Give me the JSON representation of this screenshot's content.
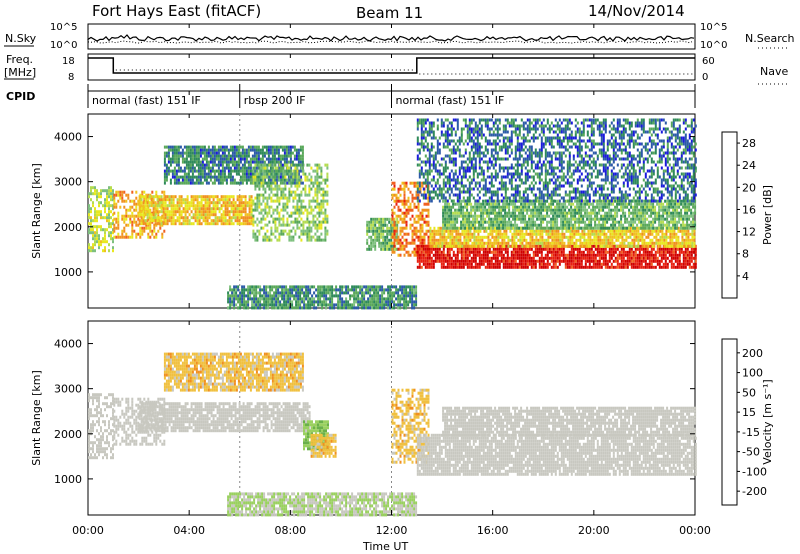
{
  "header": {
    "station": "Fort Hays East (fitACF)",
    "beam": "Beam 11",
    "date": "14/Nov/2014"
  },
  "left_labels": {
    "nsky": "N.Sky",
    "freq_line1": "Freq.",
    "freq_line2": "[MHz]",
    "cpid": "CPID"
  },
  "right_labels": {
    "nsearch": "N.Search",
    "nave": "Nave"
  },
  "noise_axis": {
    "top": "10^5",
    "bottom": "10^0"
  },
  "freq_axis": {
    "top": "18",
    "bottom": "8"
  },
  "nave_axis": {
    "top": "60",
    "bottom": "0"
  },
  "cpid_segments": [
    {
      "start_hour": 0,
      "end_hour": 6.0,
      "label": "normal (fast) 151 IF"
    },
    {
      "start_hour": 6.0,
      "end_hour": 12.0,
      "label": "rbsp 200 IF"
    },
    {
      "start_hour": 12.0,
      "end_hour": 24,
      "label": "normal (fast) 151 IF"
    }
  ],
  "x_axis": {
    "title": "Time UT",
    "ticks": [
      "00:00",
      "04:00",
      "08:00",
      "12:00",
      "16:00",
      "20:00",
      "00:00"
    ],
    "range_hours": [
      0,
      24
    ]
  },
  "chart_data": [
    {
      "type": "heatmap",
      "panel": "power",
      "ylabel": "Slant Range [km]",
      "yticks": [
        "1000",
        "2000",
        "3000",
        "4000"
      ],
      "ylim_km": [
        200,
        4500
      ],
      "colorbar": {
        "label": "Power [dB]",
        "ticks": [
          "4",
          "8",
          "12",
          "16",
          "20",
          "24",
          "28"
        ],
        "range": [
          0,
          30
        ],
        "colors": [
          "#1a1adc",
          "#2c5aa8",
          "#2f8a5a",
          "#5aa85a",
          "#7ec07e",
          "#b4dc50",
          "#e8e820",
          "#f0c020",
          "#f09020",
          "#f06020",
          "#e82010",
          "#d00000"
        ]
      },
      "echo_regions": [
        {
          "t0": 0.0,
          "t1": 1.0,
          "r0": 1500,
          "r1": 2900,
          "power": 14
        },
        {
          "t0": 1.0,
          "t1": 3.0,
          "r0": 1800,
          "r1": 2800,
          "power": 20
        },
        {
          "t0": 2.0,
          "t1": 6.5,
          "r0": 2100,
          "r1": 2700,
          "power": 18
        },
        {
          "t0": 3.0,
          "t1": 8.5,
          "r0": 3000,
          "r1": 3800,
          "power": 6
        },
        {
          "t0": 6.5,
          "t1": 9.5,
          "r0": 1700,
          "r1": 3400,
          "power": 12
        },
        {
          "t0": 11.0,
          "t1": 12.2,
          "r0": 1500,
          "r1": 2200,
          "power": 10
        },
        {
          "t0": 12.0,
          "t1": 13.5,
          "r0": 1400,
          "r1": 3000,
          "power": 22
        },
        {
          "t0": 13.0,
          "t1": 24.0,
          "r0": 1100,
          "r1": 1600,
          "power": 28
        },
        {
          "t0": 13.5,
          "t1": 24.0,
          "r0": 1600,
          "r1": 2000,
          "power": 18
        },
        {
          "t0": 14.0,
          "t1": 24.0,
          "r0": 2000,
          "r1": 2600,
          "power": 10
        },
        {
          "t0": 13.0,
          "t1": 24.0,
          "r0": 2600,
          "r1": 4400,
          "power": 5
        },
        {
          "t0": 5.5,
          "t1": 13.0,
          "r0": 200,
          "r1": 700,
          "power": 7
        }
      ]
    },
    {
      "type": "heatmap",
      "panel": "velocity",
      "ylabel": "Slant Range [km]",
      "yticks": [
        "1000",
        "2000",
        "3000",
        "4000"
      ],
      "ylim_km": [
        200,
        4500
      ],
      "colorbar": {
        "label": "Velocity [m s⁻¹]",
        "ticks": [
          "200",
          "100",
          "50",
          "15",
          "-15",
          "-50",
          "-100",
          "-200"
        ],
        "range": [
          -250,
          250
        ],
        "colors": [
          "#1a2ad0",
          "#2c5aa8",
          "#2f8a5a",
          "#6ab04a",
          "#9ad060",
          "#c8c8c0",
          "#c8c8c0",
          "#f0c040",
          "#f09020",
          "#f06020",
          "#e82010",
          "#d00000"
        ]
      },
      "echo_regions": [
        {
          "t0": 0.0,
          "t1": 1.0,
          "r0": 1500,
          "r1": 2900,
          "velocity": 0
        },
        {
          "t0": 1.0,
          "t1": 3.0,
          "r0": 1800,
          "r1": 2800,
          "velocity": -5
        },
        {
          "t0": 2.0,
          "t1": 8.8,
          "r0": 2100,
          "r1": 2700,
          "velocity": 0
        },
        {
          "t0": 3.0,
          "t1": 8.5,
          "r0": 3000,
          "r1": 3800,
          "velocity": 60
        },
        {
          "t0": 8.5,
          "t1": 9.5,
          "r0": 1700,
          "r1": 2300,
          "velocity": -80
        },
        {
          "t0": 8.8,
          "t1": 9.8,
          "r0": 1500,
          "r1": 2000,
          "velocity": 60
        },
        {
          "t0": 12.0,
          "t1": 13.5,
          "r0": 1400,
          "r1": 3000,
          "velocity": 60
        },
        {
          "t0": 13.0,
          "t1": 24.0,
          "r0": 1100,
          "r1": 2000,
          "velocity": 0
        },
        {
          "t0": 14.0,
          "t1": 24.0,
          "r0": 2000,
          "r1": 2600,
          "velocity": 0
        },
        {
          "t0": 5.5,
          "t1": 13.0,
          "r0": 200,
          "r1": 700,
          "velocity": -40
        }
      ]
    }
  ]
}
